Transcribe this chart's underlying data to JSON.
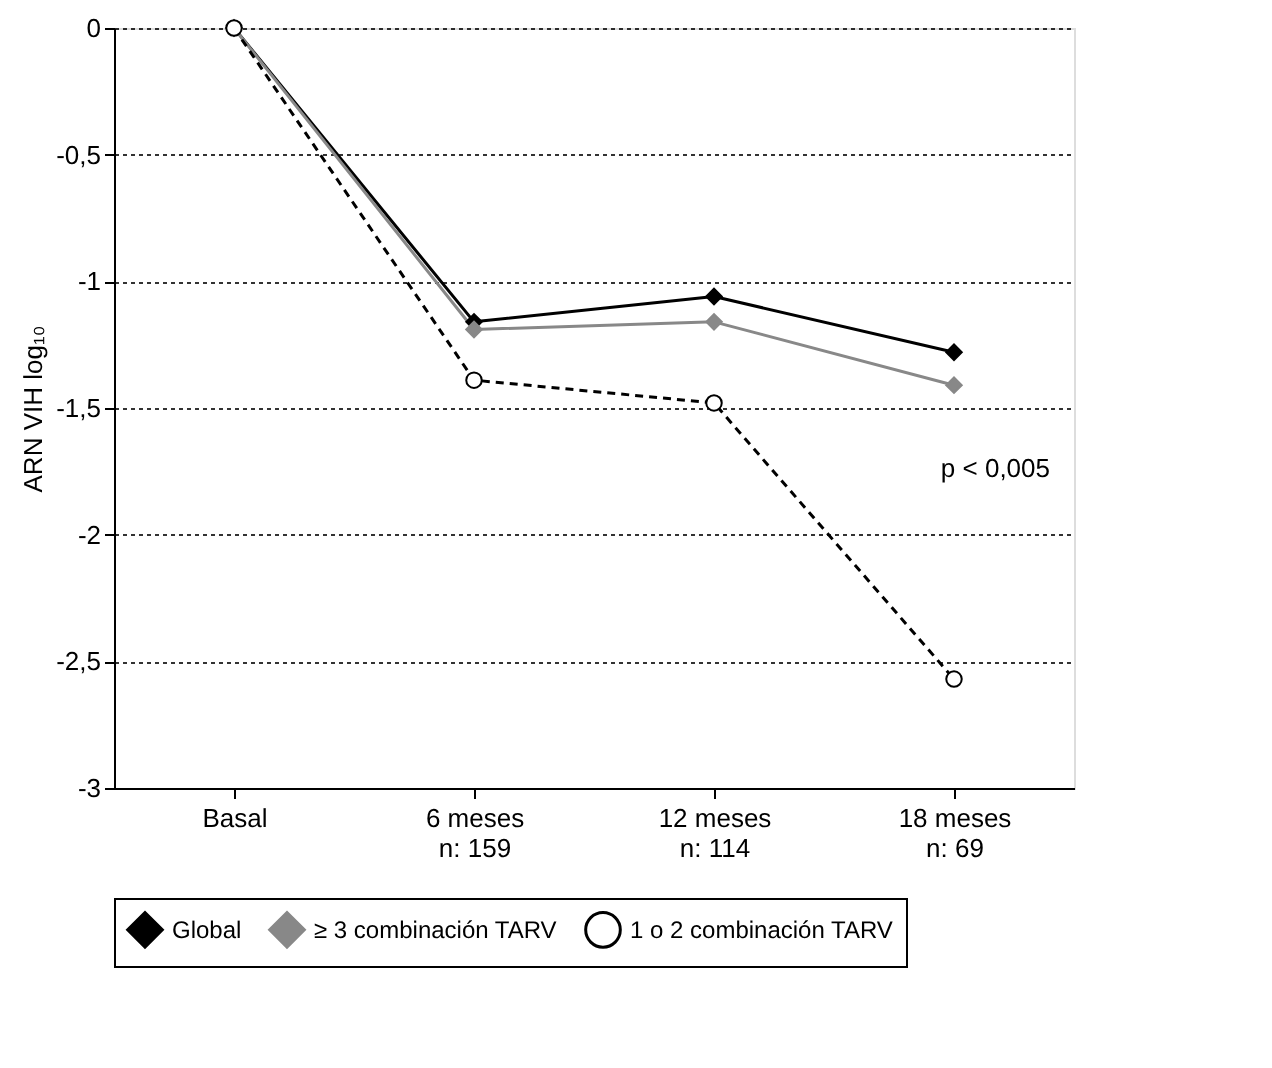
{
  "chart_data": {
    "type": "line",
    "ylabel": "ARN VIH log₁₀",
    "categories": [
      "Basal",
      "6 meses\nn: 159",
      "12 meses\nn: 114",
      "18 meses\nn: 69"
    ],
    "series": [
      {
        "name": "Global",
        "color": "#000000",
        "marker": "diamond",
        "line_style": "solid",
        "values": [
          0,
          -1.16,
          -1.06,
          -1.28
        ]
      },
      {
        "name": "≥ 3 combinación TARV",
        "color": "#888888",
        "marker": "diamond",
        "line_style": "solid",
        "values": [
          0,
          -1.19,
          -1.16,
          -1.41
        ]
      },
      {
        "name": "1 o 2 combinación TARV",
        "color": "#000000",
        "marker": "circle",
        "line_style": "dashed",
        "values": [
          0,
          -1.39,
          -1.48,
          -2.57
        ]
      }
    ],
    "ylim": [
      -3,
      0
    ],
    "yticks": [
      {
        "value": -3,
        "label": "-3"
      },
      {
        "value": -2.5,
        "label": "-2,5"
      },
      {
        "value": -2,
        "label": "-2"
      },
      {
        "value": -1.5,
        "label": "-1,5"
      },
      {
        "value": -1,
        "label": "-1"
      },
      {
        "value": -0.5,
        "label": "-0,5"
      },
      {
        "value": 0,
        "label": "0"
      }
    ],
    "grid": "y",
    "legend": "bottom",
    "annotations": [
      "p < 0,005"
    ]
  }
}
